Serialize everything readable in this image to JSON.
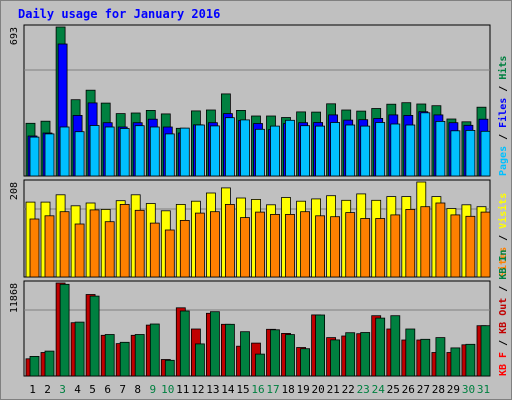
{
  "chart_data": {
    "type": "bar",
    "title": "Daily usage for January 2016",
    "colors": {
      "background": "#c0c0c0",
      "border": "#808080",
      "title": "#0000ff",
      "hits": "#008040",
      "files": "#0000ff",
      "pages": "#00c0ff",
      "visits": "#ffff00",
      "sites": "#ff8000",
      "kbin": "#008040",
      "kbout": "#c00000",
      "kbf": "#ff0000",
      "weekend_day": "#008040",
      "weekday": "#000000"
    },
    "days": [
      "1",
      "2",
      "3",
      "4",
      "5",
      "6",
      "7",
      "8",
      "9",
      "10",
      "11",
      "12",
      "13",
      "14",
      "15",
      "16",
      "17",
      "18",
      "19",
      "20",
      "21",
      "22",
      "23",
      "24",
      "25",
      "26",
      "27",
      "28",
      "29",
      "30",
      "31"
    ],
    "weekend_days": [
      "3",
      "9",
      "10",
      "16",
      "17",
      "23",
      "24",
      "30",
      "31"
    ],
    "panels": [
      {
        "id": "hits-files-pages",
        "max_label": "693",
        "ymax": 693,
        "legend": [
          {
            "text": "Pages",
            "color": "#00c0ff"
          },
          {
            "text": " / ",
            "color": "#000000"
          },
          {
            "text": "Files",
            "color": "#0000ff"
          },
          {
            "text": " / ",
            "color": "#000000"
          },
          {
            "text": "Hits",
            "color": "#008040"
          }
        ],
        "series": [
          {
            "name": "Hits",
            "color": "#008040",
            "values": [
              245,
              255,
              693,
              355,
              399,
              339,
              290,
              293,
              305,
              289,
              222,
              303,
              307,
              382,
              305,
              279,
              279,
              272,
              298,
              297,
              336,
              307,
              302,
              314,
              334,
              341,
              335,
              327,
              265,
              252,
              320
            ]
          },
          {
            "name": "Files",
            "color": "#0000ff",
            "values": [
              186,
              200,
              614,
              282,
              340,
              248,
              228,
              248,
              264,
              228,
              200,
              238,
              248,
              290,
              258,
              244,
              216,
              244,
              248,
              249,
              284,
              260,
              262,
              268,
              284,
              282,
              299,
              284,
              248,
              236,
              264
            ]
          },
          {
            "name": "Pages",
            "color": "#00c0ff",
            "values": [
              181,
              196,
              228,
              206,
              235,
              228,
              221,
              234,
              228,
              196,
              223,
              237,
              233,
              271,
              261,
              217,
              232,
              259,
              234,
              232,
              249,
              237,
              232,
              249,
              242,
              237,
              294,
              254,
              210,
              212,
              208
            ]
          }
        ]
      },
      {
        "id": "visits-sites",
        "max_label": "208",
        "ymax": 208,
        "legend": [
          {
            "text": "Sites",
            "color": "#ff8000"
          },
          {
            "text": " / ",
            "color": "#000000"
          },
          {
            "text": "Visits",
            "color": "#ffff00"
          }
        ],
        "series": [
          {
            "name": "Visits",
            "color": "#ffff00",
            "values": [
              164,
              164,
              180,
              156,
              162,
              148,
              167,
              180,
              161,
              145,
              159,
              166,
              184,
              195,
              173,
              170,
              158,
              174,
              166,
              171,
              178,
              168,
              182,
              168,
              176,
              176,
              208,
              176,
              150,
              158,
              154
            ]
          },
          {
            "name": "Sites",
            "color": "#ff8000",
            "values": [
              127,
              134,
              143,
              116,
              147,
              121,
              159,
              146,
              118,
              103,
              124,
              140,
              143,
              159,
              130,
              142,
              137,
              137,
              143,
              134,
              132,
              141,
              128,
              128,
              136,
              148,
              154,
              162,
              136,
              133,
              142
            ]
          }
        ]
      },
      {
        "id": "kb",
        "max_label": "11868",
        "ymax": 11868,
        "legend": [
          {
            "text": "KB F",
            "color": "#ff0000"
          },
          {
            "text": " / ",
            "color": "#000000"
          },
          {
            "text": "KB Out",
            "color": "#c00000"
          },
          {
            "text": " / ",
            "color": "#000000"
          },
          {
            "text": "KB In",
            "color": "#008040"
          }
        ],
        "series": [
          {
            "name": "KB Out",
            "color": "#c00000",
            "values": [
              2200,
              3000,
              11868,
              6800,
              10400,
              5200,
              4140,
              5200,
              6500,
              2100,
              8700,
              6000,
              8000,
              6600,
              3800,
              4200,
              5960,
              5440,
              3640,
              7800,
              4900,
              5100,
              5400,
              7700,
              6000,
              4600,
              4600,
              3000,
              3000,
              3980,
              6420
            ]
          },
          {
            "name": "KB In",
            "color": "#008040",
            "values": [
              2500,
              3180,
              11700,
              6880,
              10200,
              5300,
              4300,
              5300,
              6630,
              2000,
              8300,
              4100,
              8200,
              6600,
              5650,
              2800,
              5900,
              5280,
              3490,
              7780,
              4610,
              5520,
              5550,
              7390,
              7700,
              6000,
              4680,
              4900,
              3590,
              4050,
              6420
            ]
          }
        ]
      }
    ]
  }
}
